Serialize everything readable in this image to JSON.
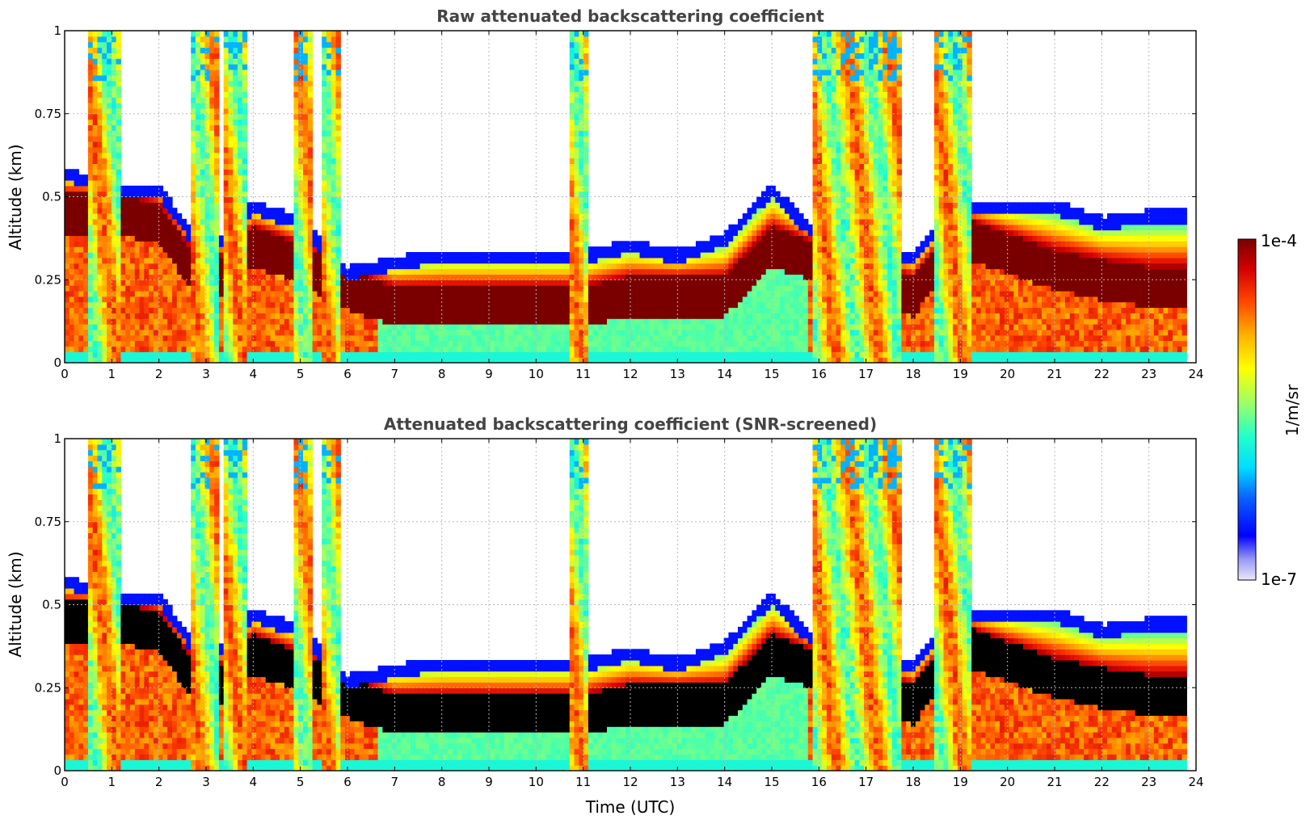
{
  "chart_data": [
    {
      "type": "heatmap",
      "title": "Raw attenuated backscattering coefficient",
      "xlabel": "",
      "ylabel": "Altitude (km)",
      "xlim": [
        0,
        24
      ],
      "ylim": [
        0,
        1
      ],
      "x_ticks": [
        "0",
        "1",
        "2",
        "3",
        "4",
        "5",
        "6",
        "7",
        "8",
        "9",
        "10",
        "11",
        "12",
        "13",
        "14",
        "15",
        "16",
        "17",
        "18",
        "19",
        "20",
        "21",
        "22",
        "23",
        "24"
      ],
      "y_ticks": [
        "0",
        "0.25",
        "0.5",
        "0.75",
        "1"
      ],
      "grid": true,
      "colormap": "jet",
      "color_scale": "log",
      "clim": [
        1e-07,
        0.0001
      ],
      "screened_color": null,
      "description_fields": {
        "boundary_layer_top_km": [
          [
            0,
            0.55
          ],
          [
            1,
            0.5
          ],
          [
            2,
            0.5
          ],
          [
            3,
            0.3
          ],
          [
            4,
            0.45
          ],
          [
            5,
            0.4
          ],
          [
            6,
            0.25
          ],
          [
            7,
            0.28
          ],
          [
            8,
            0.3
          ],
          [
            9,
            0.3
          ],
          [
            10,
            0.3
          ],
          [
            11,
            0.3
          ],
          [
            12,
            0.33
          ],
          [
            13,
            0.3
          ],
          [
            14,
            0.35
          ],
          [
            15,
            0.5
          ],
          [
            16,
            0.35
          ],
          [
            17,
            0.3
          ],
          [
            18,
            0.3
          ],
          [
            19,
            0.45
          ],
          [
            20,
            0.45
          ],
          [
            21,
            0.45
          ],
          [
            22,
            0.4
          ],
          [
            23,
            0.42
          ],
          [
            23.8,
            0.42
          ]
        ],
        "aerosol_layer_center_km": [
          [
            0,
            0.45
          ],
          [
            1,
            0.45
          ],
          [
            2,
            0.42
          ],
          [
            3,
            0.22
          ],
          [
            4,
            0.35
          ],
          [
            5,
            0.3
          ],
          [
            6,
            0.22
          ],
          [
            7,
            0.17
          ],
          [
            8,
            0.17
          ],
          [
            9,
            0.17
          ],
          [
            10,
            0.17
          ],
          [
            11,
            0.17
          ],
          [
            12,
            0.2
          ],
          [
            13,
            0.2
          ],
          [
            14,
            0.2
          ],
          [
            15,
            0.35
          ],
          [
            16,
            0.3
          ],
          [
            17,
            0.25
          ],
          [
            18,
            0.2
          ],
          [
            19,
            0.38
          ],
          [
            20,
            0.33
          ],
          [
            21,
            0.28
          ],
          [
            22,
            0.25
          ],
          [
            23,
            0.23
          ],
          [
            23.8,
            0.23
          ]
        ],
        "cloud_columns_utc": [
          [
            0.5,
            1.2
          ],
          [
            2.7,
            3.3
          ],
          [
            3.4,
            3.9
          ],
          [
            4.9,
            5.3
          ],
          [
            5.5,
            5.9
          ],
          [
            10.7,
            11.1
          ],
          [
            15.9,
            16.3
          ],
          [
            16.3,
            17.8
          ],
          [
            18.4,
            19.2
          ]
        ]
      }
    },
    {
      "type": "heatmap",
      "title": "Attenuated backscattering coefficient (SNR-screened)",
      "xlabel": "Time (UTC)",
      "ylabel": "Altitude (km)",
      "xlim": [
        0,
        24
      ],
      "ylim": [
        0,
        1
      ],
      "x_ticks": [
        "0",
        "1",
        "2",
        "3",
        "4",
        "5",
        "6",
        "7",
        "8",
        "9",
        "10",
        "11",
        "12",
        "13",
        "14",
        "15",
        "16",
        "17",
        "18",
        "19",
        "20",
        "21",
        "22",
        "23",
        "24"
      ],
      "y_ticks": [
        "0",
        "0.25",
        "0.5",
        "0.75",
        "1"
      ],
      "grid": true,
      "colormap": "jet",
      "color_scale": "log",
      "clim": [
        1e-07,
        0.0001
      ],
      "screened_color": "#000000"
    }
  ],
  "colorbar": {
    "max_label": "1e-4",
    "min_label": "1e-7",
    "label": "1/m/sr"
  }
}
